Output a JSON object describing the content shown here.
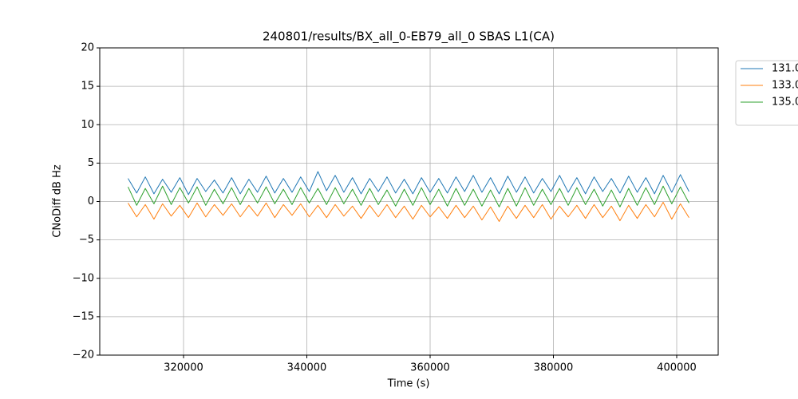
{
  "chart_data": {
    "type": "line",
    "title": "240801/results/BX_all_0-EB79_all_0 SBAS L1(CA)",
    "x_label": "Time (s)",
    "y_label": "CNoDiff dB Hz",
    "xlim": [
      306408,
      406731
    ],
    "ylim": [
      -20,
      20
    ],
    "xticks": [
      320000,
      340000,
      360000,
      380000,
      400000
    ],
    "yticks": [
      {
        "value": -20,
        "label": "−20"
      },
      {
        "value": -15,
        "label": "−15"
      },
      {
        "value": -10,
        "label": "−10"
      },
      {
        "value": -5,
        "label": "−5"
      },
      0,
      5,
      10,
      15,
      20
    ],
    "grid": true,
    "legend": "outside right",
    "x": [
      311000,
      312400,
      313800,
      315200,
      316600,
      318000,
      319400,
      320800,
      322200,
      323600,
      325000,
      326400,
      327800,
      329200,
      330600,
      332000,
      333400,
      334800,
      336200,
      337600,
      339000,
      340400,
      341800,
      343200,
      344600,
      346000,
      347400,
      348800,
      350200,
      351600,
      353000,
      354400,
      355800,
      357200,
      358600,
      360000,
      361400,
      362800,
      364200,
      365600,
      367000,
      368400,
      369800,
      371200,
      372600,
      374000,
      375400,
      376800,
      378200,
      379600,
      381000,
      382400,
      383800,
      385200,
      386600,
      388000,
      389400,
      390800,
      392200,
      393600,
      395000,
      396400,
      397800,
      399200,
      400600,
      402000
    ],
    "series": [
      {
        "name": "131.0",
        "color": "#1f77b4",
        "values": [
          3.0,
          1.1,
          3.2,
          1.0,
          2.9,
          1.2,
          3.1,
          0.9,
          3.0,
          1.3,
          2.8,
          1.1,
          3.1,
          1.0,
          2.9,
          1.2,
          3.3,
          1.1,
          3.0,
          1.2,
          3.2,
          1.3,
          3.9,
          1.4,
          3.4,
          1.2,
          3.1,
          1.0,
          3.0,
          1.3,
          3.2,
          1.1,
          2.9,
          1.0,
          3.1,
          1.2,
          3.0,
          1.1,
          3.2,
          1.3,
          3.4,
          1.2,
          3.1,
          1.0,
          3.3,
          1.2,
          3.2,
          1.1,
          3.0,
          1.3,
          3.4,
          1.2,
          3.1,
          1.0,
          3.2,
          1.3,
          3.0,
          1.1,
          3.3,
          1.2,
          3.1,
          1.0,
          3.4,
          1.2,
          3.5,
          1.3
        ]
      },
      {
        "name": "133.0",
        "color": "#ff7f0e",
        "values": [
          -0.2,
          -2.0,
          -0.4,
          -2.3,
          -0.3,
          -1.9,
          -0.5,
          -2.1,
          -0.2,
          -2.0,
          -0.4,
          -1.8,
          -0.3,
          -2.0,
          -0.5,
          -1.9,
          -0.2,
          -2.1,
          -0.4,
          -1.8,
          -0.3,
          -2.0,
          -0.5,
          -2.1,
          -0.4,
          -1.9,
          -0.6,
          -2.2,
          -0.5,
          -2.0,
          -0.4,
          -2.1,
          -0.6,
          -2.3,
          -0.5,
          -2.0,
          -0.7,
          -2.2,
          -0.5,
          -2.1,
          -0.6,
          -2.4,
          -0.7,
          -2.6,
          -0.6,
          -2.2,
          -0.5,
          -2.1,
          -0.4,
          -2.3,
          -0.6,
          -2.0,
          -0.5,
          -2.2,
          -0.4,
          -2.1,
          -0.6,
          -2.5,
          -0.5,
          -2.2,
          -0.4,
          -2.0,
          -0.1,
          -2.3,
          -0.3,
          -2.1
        ]
      },
      {
        "name": "135.0",
        "color": "#2ca02c",
        "values": [
          1.9,
          -0.5,
          1.7,
          -0.3,
          2.0,
          -0.4,
          1.8,
          -0.2,
          1.9,
          -0.5,
          1.6,
          -0.3,
          1.8,
          -0.4,
          1.7,
          -0.2,
          1.9,
          -0.3,
          1.6,
          -0.4,
          1.8,
          -0.2,
          1.7,
          -0.4,
          1.8,
          -0.3,
          1.6,
          -0.5,
          1.7,
          -0.4,
          1.5,
          -0.6,
          1.6,
          -0.5,
          1.8,
          -0.4,
          1.6,
          -0.6,
          1.7,
          -0.5,
          1.6,
          -0.6,
          1.5,
          -0.7,
          1.7,
          -0.6,
          1.8,
          -0.5,
          1.6,
          -0.4,
          1.7,
          -0.5,
          1.8,
          -0.4,
          1.6,
          -0.6,
          1.5,
          -0.7,
          1.7,
          -0.5,
          1.8,
          -0.4,
          2.0,
          -0.3,
          1.9,
          -0.2
        ]
      }
    ]
  }
}
